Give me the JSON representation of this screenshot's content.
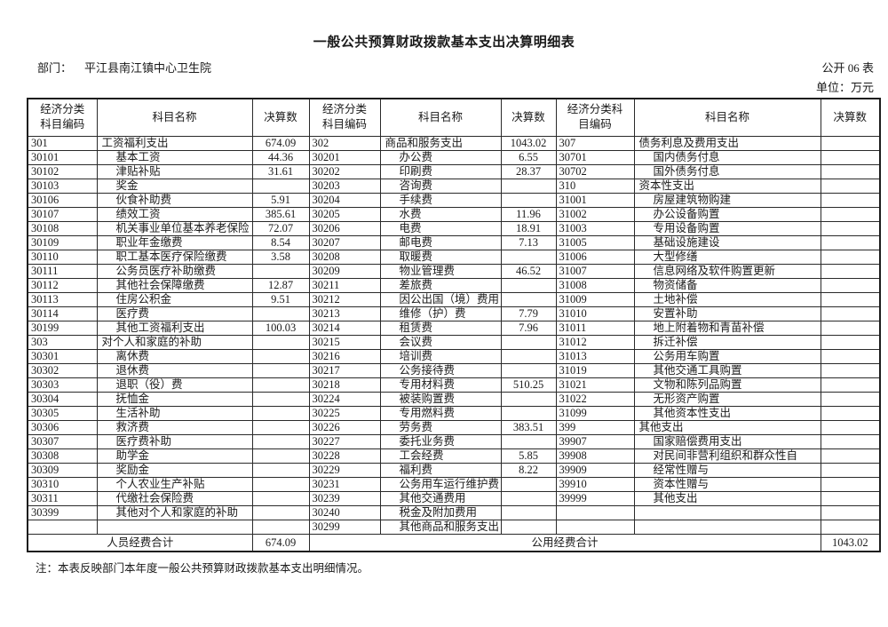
{
  "page": {
    "title": "一般公共预算财政拨款基本支出决算明细表",
    "department_label": "部门：",
    "department": "平江县南江镇中心卫生院",
    "table_code": "公开 06 表",
    "unit": "单位：万元",
    "note": "注：本表反映部门本年度一般公共预算财政拨款基本支出明细情况。"
  },
  "table": {
    "header": {
      "code12_line1": "经济分类",
      "code12_line2": "科目编码",
      "code3_line1": "经济分类科",
      "code3_line2": "目编码",
      "name": "科目名称",
      "value": "决算数"
    },
    "groups": [
      {
        "rows": [
          [
            "301",
            "工资福利支出",
            "674.09"
          ],
          [
            "30101",
            "基本工资",
            "44.36"
          ],
          [
            "30102",
            "津贴补贴",
            "31.61"
          ],
          [
            "30103",
            "奖金",
            ""
          ],
          [
            "30106",
            "伙食补助费",
            "5.91"
          ],
          [
            "30107",
            "绩效工资",
            "385.61"
          ],
          [
            "30108",
            "机关事业单位基本养老保险",
            "72.07"
          ],
          [
            "30109",
            "职业年金缴费",
            "8.54"
          ],
          [
            "30110",
            "职工基本医疗保险缴费",
            "3.58"
          ],
          [
            "30111",
            "公务员医疗补助缴费",
            ""
          ],
          [
            "30112",
            "其他社会保障缴费",
            "12.87"
          ],
          [
            "30113",
            "住房公积金",
            "9.51"
          ],
          [
            "30114",
            "医疗费",
            ""
          ],
          [
            "30199",
            "其他工资福利支出",
            "100.03"
          ],
          [
            "303",
            "对个人和家庭的补助",
            ""
          ],
          [
            "30301",
            "离休费",
            ""
          ],
          [
            "30302",
            "退休费",
            ""
          ],
          [
            "30303",
            "退职（役）费",
            ""
          ],
          [
            "30304",
            "抚恤金",
            ""
          ],
          [
            "30305",
            "生活补助",
            ""
          ],
          [
            "30306",
            "救济费",
            ""
          ],
          [
            "30307",
            "医疗费补助",
            ""
          ],
          [
            "30308",
            "助学金",
            ""
          ],
          [
            "30309",
            "奖励金",
            ""
          ],
          [
            "30310",
            "个人农业生产补贴",
            ""
          ],
          [
            "30311",
            "代缴社会保险费",
            ""
          ],
          [
            "30399",
            "其他对个人和家庭的补助",
            ""
          ],
          [
            "",
            "",
            ""
          ]
        ]
      },
      {
        "rows": [
          [
            "302",
            "商品和服务支出",
            "1043.02"
          ],
          [
            "30201",
            "办公费",
            "6.55"
          ],
          [
            "30202",
            "印刷费",
            "28.37"
          ],
          [
            "30203",
            "咨询费",
            ""
          ],
          [
            "30204",
            "手续费",
            ""
          ],
          [
            "30205",
            "水费",
            "11.96"
          ],
          [
            "30206",
            "电费",
            "18.91"
          ],
          [
            "30207",
            "邮电费",
            "7.13"
          ],
          [
            "30208",
            "取暖费",
            ""
          ],
          [
            "30209",
            "物业管理费",
            "46.52"
          ],
          [
            "30211",
            "差旅费",
            ""
          ],
          [
            "30212",
            "因公出国（境）费用",
            ""
          ],
          [
            "30213",
            "维修（护）费",
            "7.79"
          ],
          [
            "30214",
            "租赁费",
            "7.96"
          ],
          [
            "30215",
            "会议费",
            ""
          ],
          [
            "30216",
            "培训费",
            ""
          ],
          [
            "30217",
            "公务接待费",
            ""
          ],
          [
            "30218",
            "专用材料费",
            "510.25"
          ],
          [
            "30224",
            "被装购置费",
            ""
          ],
          [
            "30225",
            "专用燃料费",
            ""
          ],
          [
            "30226",
            "劳务费",
            "383.51"
          ],
          [
            "30227",
            "委托业务费",
            ""
          ],
          [
            "30228",
            "工会经费",
            "5.85"
          ],
          [
            "30229",
            "福利费",
            "8.22"
          ],
          [
            "30231",
            "公务用车运行维护费",
            ""
          ],
          [
            "30239",
            "其他交通费用",
            ""
          ],
          [
            "30240",
            "税金及附加费用",
            ""
          ],
          [
            "30299",
            "其他商品和服务支出",
            ""
          ]
        ]
      },
      {
        "rows": [
          [
            "307",
            "债务利息及费用支出",
            ""
          ],
          [
            "30701",
            "国内债务付息",
            ""
          ],
          [
            "30702",
            "国外债务付息",
            ""
          ],
          [
            "310",
            "资本性支出",
            ""
          ],
          [
            "31001",
            "房屋建筑物购建",
            ""
          ],
          [
            "31002",
            "办公设备购置",
            ""
          ],
          [
            "31003",
            "专用设备购置",
            ""
          ],
          [
            "31005",
            "基础设施建设",
            ""
          ],
          [
            "31006",
            "大型修缮",
            ""
          ],
          [
            "31007",
            "信息网络及软件购置更新",
            ""
          ],
          [
            "31008",
            "物资储备",
            ""
          ],
          [
            "31009",
            "土地补偿",
            ""
          ],
          [
            "31010",
            "安置补助",
            ""
          ],
          [
            "31011",
            "地上附着物和青苗补偿",
            ""
          ],
          [
            "31012",
            "拆迁补偿",
            ""
          ],
          [
            "31013",
            "公务用车购置",
            ""
          ],
          [
            "31019",
            "其他交通工具购置",
            ""
          ],
          [
            "31021",
            "文物和陈列品购置",
            ""
          ],
          [
            "31022",
            "无形资产购置",
            ""
          ],
          [
            "31099",
            "其他资本性支出",
            ""
          ],
          [
            "399",
            "其他支出",
            ""
          ],
          [
            "39907",
            "国家赔偿费用支出",
            ""
          ],
          [
            "39908",
            "对民间非营利组织和群众性自",
            ""
          ],
          [
            "39909",
            "经常性赠与",
            ""
          ],
          [
            "39910",
            "资本性赠与",
            ""
          ],
          [
            "39999",
            "其他支出",
            ""
          ],
          [
            "",
            "",
            ""
          ],
          [
            "",
            "",
            ""
          ]
        ]
      }
    ],
    "footer": {
      "personnel_label": "人员经费合计",
      "personnel_value": "674.09",
      "public_label": "公用经费合计",
      "public_value": "1043.02"
    }
  }
}
